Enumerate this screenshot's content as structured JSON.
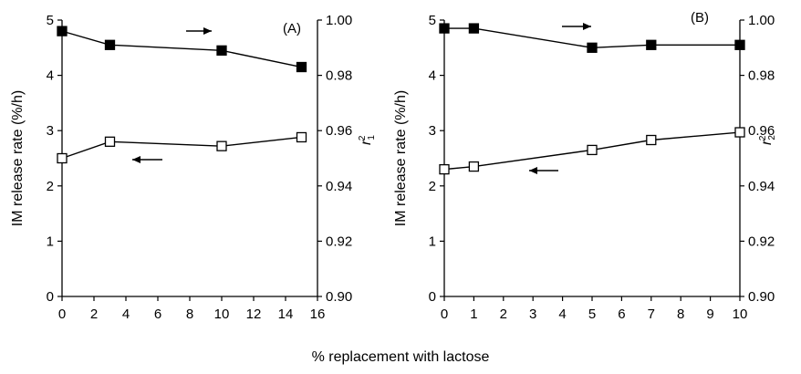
{
  "xlabel": "% replacement with lactose",
  "chart_data": [
    {
      "type": "line",
      "panel_label": "(A)",
      "ylabel_left": "IM release rate (%/h)",
      "ylabel_right": "r",
      "ylabel_right_sub": "1",
      "ylabel_right_sup": "2",
      "xlim": [
        0,
        16
      ],
      "ylim_left": [
        0,
        5
      ],
      "ylim_right": [
        0.9,
        1.0
      ],
      "xticks": [
        "0",
        "2",
        "4",
        "6",
        "8",
        "10",
        "12",
        "14",
        "16"
      ],
      "yticks_left": [
        "0",
        "1",
        "2",
        "3",
        "4",
        "5"
      ],
      "yticks_right": [
        "0.90",
        "0.92",
        "0.94",
        "0.96",
        "0.98",
        "1.00"
      ],
      "series": [
        {
          "marker": "filled-square",
          "axis": "right",
          "x": [
            0,
            3,
            10,
            15
          ],
          "y": [
            0.996,
            0.991,
            0.989,
            0.983
          ]
        },
        {
          "marker": "open-square",
          "axis": "left",
          "x": [
            0,
            3,
            10,
            15
          ],
          "y": [
            2.5,
            2.8,
            2.72,
            2.88
          ]
        }
      ]
    },
    {
      "type": "line",
      "panel_label": "(B)",
      "ylabel_left": "IM release rate (%/h)",
      "ylabel_right": "r",
      "ylabel_right_sub": "2",
      "ylabel_right_sup": "2",
      "xlim": [
        0,
        10
      ],
      "ylim_left": [
        0,
        5
      ],
      "ylim_right": [
        0.9,
        1.0
      ],
      "xticks": [
        "0",
        "1",
        "2",
        "3",
        "4",
        "5",
        "6",
        "7",
        "8",
        "9",
        "10"
      ],
      "yticks_left": [
        "0",
        "1",
        "2",
        "3",
        "4",
        "5"
      ],
      "yticks_right": [
        "0.90",
        "0.92",
        "0.94",
        "0.96",
        "0.98",
        "1.00"
      ],
      "series": [
        {
          "marker": "filled-square",
          "axis": "right",
          "x": [
            0,
            1,
            5,
            7,
            10
          ],
          "y": [
            0.997,
            0.997,
            0.99,
            0.991,
            0.991
          ]
        },
        {
          "marker": "open-square",
          "axis": "left",
          "x": [
            0,
            1,
            5,
            7,
            10
          ],
          "y": [
            2.3,
            2.35,
            2.65,
            2.83,
            2.97
          ]
        }
      ]
    }
  ]
}
